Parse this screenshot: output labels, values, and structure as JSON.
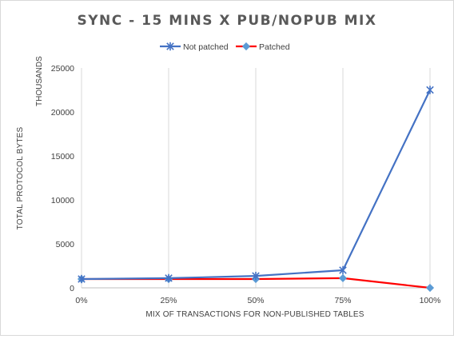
{
  "chart_data": {
    "type": "line",
    "title": "SYNC - 15 MINS X PUB/NOPUB MIX",
    "xlabel": "MIX OF TRANSACTIONS FOR NON-PUBLISHED TABLES",
    "ylabel": "TOTAL PROTOCOL BYTES",
    "y_units_label": "THOUSANDS",
    "categories": [
      "0%",
      "25%",
      "50%",
      "75%",
      "100%"
    ],
    "ylim": [
      0,
      25000
    ],
    "yticks": [
      0,
      5000,
      10000,
      15000,
      20000,
      25000
    ],
    "grid": "vertical",
    "legend_position": "top",
    "series": [
      {
        "name": "Not patched",
        "color": "#4472c4",
        "marker": "star",
        "values": [
          1000,
          1100,
          1350,
          2000,
          22500
        ]
      },
      {
        "name": "Patched",
        "color": "#ff0000",
        "marker_color": "#5b9bd5",
        "marker": "diamond",
        "values": [
          1000,
          1000,
          1000,
          1100,
          0
        ]
      }
    ]
  }
}
